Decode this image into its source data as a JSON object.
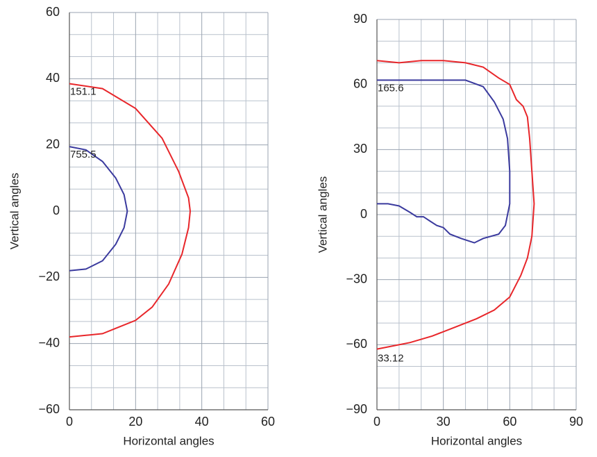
{
  "chart_data": [
    {
      "type": "line",
      "x_label": "Horizontal angles",
      "y_label": "Vertical angles",
      "xlim": [
        0,
        60
      ],
      "ylim": [
        -60,
        60
      ],
      "xticks": [
        0,
        20,
        40,
        60
      ],
      "yticks": [
        {
          "value": -60,
          "label": "−60"
        },
        {
          "value": -40,
          "label": "−40"
        },
        {
          "value": -20,
          "label": "−20"
        },
        0,
        20,
        40,
        60
      ],
      "grid": true,
      "minor_grid": 3,
      "series": [
        {
          "name": "151.1",
          "color": "#e8262a",
          "label_at": "first",
          "x": [
            0,
            10,
            20,
            28,
            33,
            36,
            36.5,
            36,
            34,
            30,
            25,
            20,
            15,
            10,
            5,
            0
          ],
          "values": [
            38.5,
            37,
            31,
            22,
            12,
            4,
            0,
            -5,
            -13,
            -22,
            -29,
            -33,
            -35,
            -37,
            -37.5,
            -38
          ]
        },
        {
          "name": "755.5",
          "color": "#3a3a9e",
          "label_at": "first",
          "x": [
            0,
            5,
            10,
            14,
            16.5,
            17.5,
            16.5,
            14,
            10,
            5,
            0
          ],
          "values": [
            19.5,
            18.5,
            15,
            10,
            5,
            0,
            -5,
            -10,
            -15,
            -17.5,
            -18
          ]
        }
      ]
    },
    {
      "type": "line",
      "x_label": "Horizontal angles",
      "y_label": "Vertical angles",
      "xlim": [
        0,
        90
      ],
      "ylim": [
        -90,
        90
      ],
      "xticks": [
        0,
        30,
        60,
        90
      ],
      "yticks": [
        {
          "value": -90,
          "label": "−90"
        },
        {
          "value": -60,
          "label": "−60"
        },
        {
          "value": -30,
          "label": "−30"
        },
        0,
        30,
        60,
        90
      ],
      "grid": true,
      "minor_grid": 3,
      "series": [
        {
          "name": "33.12",
          "color": "#e8262a",
          "label_at": "last",
          "x": [
            0,
            10,
            20,
            30,
            40,
            48,
            55,
            60,
            63,
            66,
            68,
            69,
            70,
            71,
            70,
            68,
            65,
            60,
            53,
            45,
            35,
            25,
            15,
            5,
            0
          ],
          "values": [
            71,
            70,
            71,
            71,
            70,
            68,
            63,
            60,
            53,
            50,
            45,
            35,
            20,
            5,
            -10,
            -20,
            -28,
            -38,
            -44,
            -48,
            -52,
            -56,
            -59,
            -61,
            -62
          ]
        },
        {
          "name": "165.6",
          "color": "#3a3a9e",
          "label_at": "first",
          "x": [
            0,
            10,
            20,
            30,
            40,
            48,
            53,
            57,
            59,
            60,
            60,
            58,
            55,
            48,
            44,
            38,
            33,
            30,
            27,
            24,
            21,
            18,
            15,
            10,
            5,
            0
          ],
          "values": [
            62,
            62,
            62,
            62,
            62,
            59,
            52,
            44,
            35,
            20,
            5,
            -5,
            -9,
            -11,
            -13,
            -11,
            -9,
            -6,
            -5,
            -3,
            -1,
            -1,
            1,
            4,
            5,
            5
          ]
        }
      ]
    }
  ]
}
